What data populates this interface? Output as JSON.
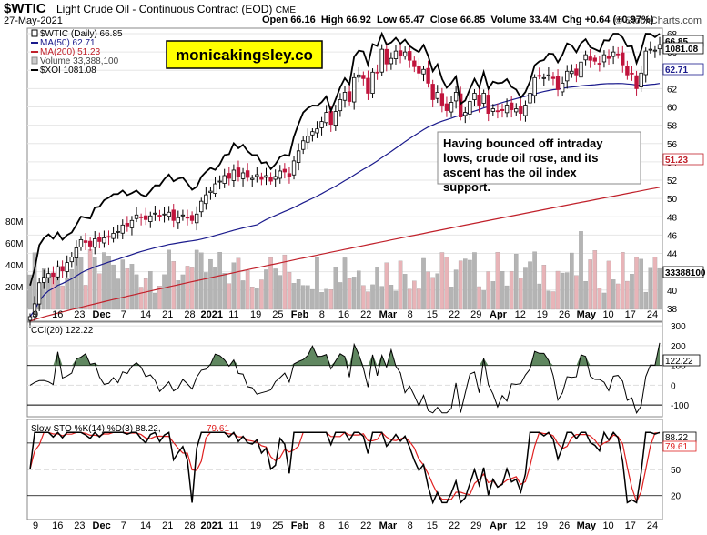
{
  "header": {
    "symbol": "$WTIC",
    "name": "Light Crude Oil - Continuous Contract (EOD)",
    "exchange": "CME",
    "date": "27-May-2021",
    "open_label": "Open",
    "open": "66.16",
    "high_label": "High",
    "high": "66.92",
    "low_label": "Low",
    "low": "65.47",
    "close_label": "Close",
    "close": "66.85",
    "volume_label": "Volume",
    "volume": "33.4M",
    "chg_label": "Chg",
    "chg": "+0.64 (+0.97%)",
    "watermark": "© StockCharts.com"
  },
  "logo_text": "monicakingsley.co",
  "annotation": "Having bounced off intraday lows, crude oil rose, and its ascent has the oil index support.",
  "legend": [
    {
      "text": "$WTIC (Daily) 66.85",
      "color": "#000000",
      "marker": "candle"
    },
    {
      "text": "MA(50) 62.71",
      "color": "#1a1a8c",
      "marker": "line"
    },
    {
      "text": "MA(200) 51.23",
      "color": "#c0202a",
      "marker": "line"
    },
    {
      "text": "Volume 33,388,100",
      "color": "#888888",
      "marker": "box"
    },
    {
      "text": "$XOI 1081.08",
      "color": "#000000",
      "marker": "line"
    }
  ],
  "price_axis": {
    "ticks": [
      "68",
      "66",
      "64",
      "62",
      "60",
      "58",
      "56",
      "54",
      "52",
      "50",
      "48",
      "46",
      "44",
      "42",
      "40",
      "38"
    ],
    "tags": [
      {
        "text": "66.85",
        "color": "#000000"
      },
      {
        "text": "1081.08",
        "color": "#000000"
      },
      {
        "text": "62.71",
        "color": "#1a1a8c"
      },
      {
        "text": "51.23",
        "color": "#c0202a"
      },
      {
        "text": "33388100",
        "color": "#000000"
      }
    ]
  },
  "volume_axis": [
    "80M",
    "60M",
    "40M",
    "20M"
  ],
  "x_axis_labels": [
    "9",
    "16",
    "23",
    "Dec",
    "7",
    "14",
    "21",
    "28",
    "2021",
    "11",
    "19",
    "25",
    "Feb",
    "8",
    "16",
    "22",
    "Mar",
    "8",
    "15",
    "22",
    "29",
    "Apr",
    "12",
    "19",
    "26",
    "May",
    "10",
    "17",
    "24"
  ],
  "cci": {
    "label": "CCI(20) 122.22",
    "ticks": [
      "300",
      "200",
      "100",
      "0",
      "-100"
    ],
    "tag": "122.22"
  },
  "sto": {
    "label_prefix": "Slow STO %K(14) %D(3)",
    "k": "88.22",
    "d": "79.61",
    "ticks": [
      "80",
      "50",
      "20"
    ],
    "tags": [
      "88.22",
      "79.61"
    ]
  },
  "colors": {
    "up_candle": "#000000",
    "down_candle": "#c0143c",
    "ma50": "#1a1a8c",
    "ma200": "#c0202a",
    "xoi": "#000000",
    "vol_up": "#b4b4b4",
    "vol_down": "#e8b4b8",
    "cci_fill": "#4f7a4f",
    "sto_k": "#000000",
    "sto_d": "#e02020",
    "logo_bg": "#ffff00"
  },
  "chart_data": [
    {
      "type": "candlestick",
      "title": "$WTIC (Daily)",
      "ylim": [
        37,
        69
      ],
      "closes": [
        37.1,
        38.5,
        40.8,
        41.4,
        41.8,
        41.5,
        42.5,
        42.1,
        43.0,
        43.6,
        44.6,
        45.5,
        45.2,
        44.8,
        45.6,
        45.3,
        45.7,
        45.8,
        46.2,
        46.4,
        47.1,
        47.0,
        47.6,
        48.2,
        47.9,
        47.7,
        48.1,
        48.4,
        48.0,
        48.3,
        48.5,
        47.6,
        47.9,
        48.2,
        47.9,
        47.6,
        48.3,
        49.7,
        50.4,
        50.8,
        51.6,
        51.9,
        52.5,
        52.2,
        53.1,
        52.4,
        52.8,
        52.3,
        52.2,
        52.6,
        52.1,
        52.5,
        51.9,
        52.4,
        53.0,
        52.9,
        52.4,
        54.1,
        55.2,
        56.3,
        56.8,
        57.3,
        57.6,
        58.4,
        59.4,
        58.1,
        59.5,
        60.8,
        61.6,
        60.6,
        63.2,
        63.5,
        63.1,
        61.5,
        63.8,
        63.8,
        66.3,
        64.7,
        65.3,
        66.1,
        65.6,
        66.0,
        65.1,
        64.4,
        63.7,
        64.1,
        62.6,
        60.8,
        61.6,
        60.2,
        59.6,
        60.5,
        61.6,
        58.9,
        59.4,
        60.6,
        61.5,
        60.2,
        61.5,
        59.3,
        59.8,
        59.5,
        59.6,
        60.2,
        59.7,
        59.8,
        59.3,
        60.2,
        61.5,
        63.2,
        63.4,
        63.2,
        63.5,
        63.1,
        61.9,
        62.6,
        63.9,
        63.9,
        63.5,
        64.9,
        65.7,
        65.1,
        65.0,
        64.7,
        65.7,
        65.3,
        66.0,
        65.7,
        64.6,
        63.5,
        63.6,
        62.0,
        63.7,
        66.1,
        66.3,
        66.2,
        66.8
      ]
    },
    {
      "type": "line",
      "name": "MA(50)",
      "last": 62.71
    },
    {
      "type": "line",
      "name": "MA(200)",
      "last": 51.23
    },
    {
      "type": "line",
      "name": "$XOI",
      "last": 1081.08
    },
    {
      "type": "bar",
      "name": "Volume",
      "unit": "shares",
      "last": 33388100,
      "ylim": [
        0,
        90000000
      ]
    },
    {
      "type": "line",
      "name": "CCI(20)",
      "ylim": [
        -150,
        300
      ],
      "last": 122.22
    },
    {
      "type": "line",
      "name": "Slow STO %K(14) %D(3)",
      "ylim": [
        0,
        100
      ],
      "k_last": 88.22,
      "d_last": 79.61
    }
  ]
}
